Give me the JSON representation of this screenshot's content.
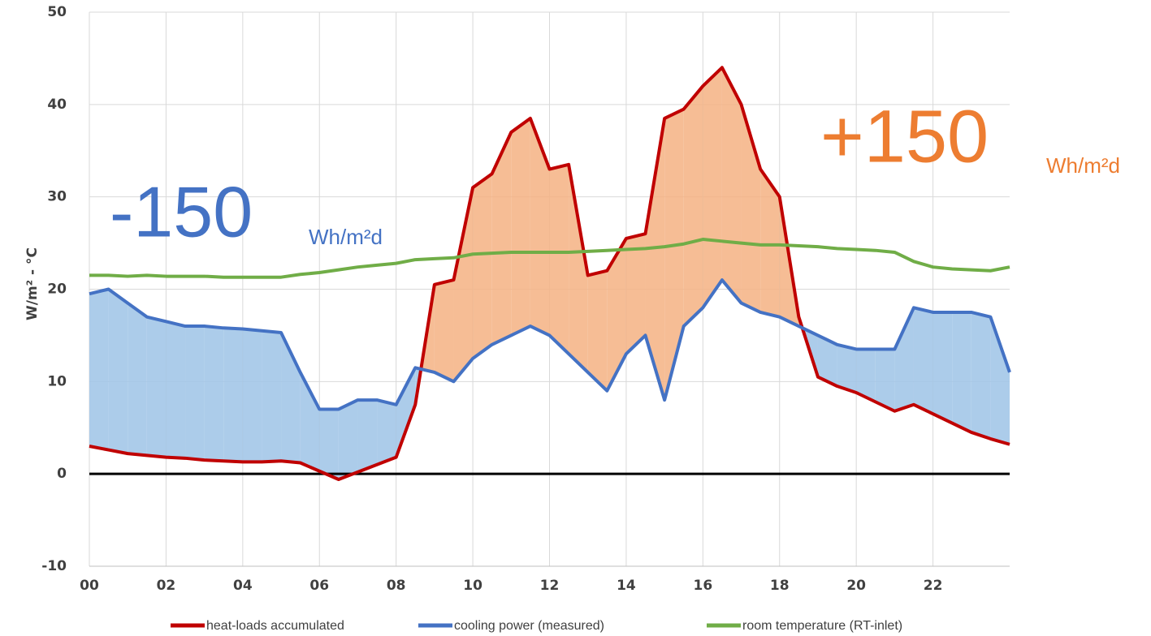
{
  "chart_data": {
    "type": "line",
    "y_label": "W/m²  -  °C",
    "x": [
      0,
      0.5,
      1,
      1.5,
      2,
      2.5,
      3,
      3.5,
      4,
      4.5,
      5,
      5.5,
      6,
      6.5,
      7,
      7.5,
      8,
      8.5,
      9,
      9.5,
      10,
      10.5,
      11,
      11.5,
      12,
      12.5,
      13,
      13.5,
      14,
      14.5,
      15,
      15.5,
      16,
      16.5,
      17,
      17.5,
      18,
      18.5,
      19,
      19.5,
      20,
      20.5,
      21,
      21.5,
      22,
      22.5,
      23,
      23.5,
      24
    ],
    "series": [
      {
        "name": "heat-loads accumulated",
        "color": "#c00000",
        "values": [
          3,
          2.6,
          2.2,
          2.0,
          1.8,
          1.7,
          1.5,
          1.4,
          1.3,
          1.3,
          1.4,
          1.2,
          0.3,
          -0.6,
          0.2,
          1.0,
          1.8,
          7.5,
          20.5,
          21,
          31,
          32.5,
          37,
          38.5,
          33,
          33.5,
          21.5,
          22,
          25.5,
          26,
          38.5,
          39.5,
          42,
          44,
          40,
          33,
          30,
          17,
          10.5,
          9.5,
          8.8,
          7.8,
          6.8,
          7.5,
          6.5,
          5.5,
          4.5,
          3.8,
          3.2
        ]
      },
      {
        "name": "cooling power (measured)",
        "color": "#4472c4",
        "values": [
          19.5,
          20,
          18.5,
          17,
          16.5,
          16,
          16,
          15.8,
          15.7,
          15.5,
          15.3,
          11,
          7,
          7,
          8,
          8,
          7.5,
          11.5,
          11,
          10,
          12.5,
          14,
          15,
          16,
          15,
          13,
          11,
          9,
          13,
          15,
          8,
          16,
          18,
          21,
          18.5,
          17.5,
          17,
          16,
          15,
          14,
          13.5,
          13.5,
          13.5,
          18,
          17.5,
          17.5,
          17.5,
          17,
          11
        ]
      },
      {
        "name": "room temperature (RT-inlet)",
        "color": "#70ad47",
        "values": [
          21.5,
          21.5,
          21.4,
          21.5,
          21.4,
          21.4,
          21.4,
          21.3,
          21.3,
          21.3,
          21.3,
          21.6,
          21.8,
          22.1,
          22.4,
          22.6,
          22.8,
          23.2,
          23.3,
          23.4,
          23.8,
          23.9,
          24,
          24,
          24,
          24,
          24.1,
          24.2,
          24.3,
          24.4,
          24.6,
          24.9,
          25.4,
          25.2,
          25,
          24.8,
          24.8,
          24.7,
          24.6,
          24.4,
          24.3,
          24.2,
          24,
          23,
          22.4,
          22.2,
          22.1,
          22,
          22.4
        ]
      }
    ],
    "fill_colors": {
      "surplus": "#f4b183",
      "deficit": "#9dc3e6"
    },
    "xlim": [
      0,
      24
    ],
    "xticks": [
      {
        "value": 0,
        "label": "00"
      },
      {
        "value": 2,
        "label": "02"
      },
      {
        "value": 4,
        "label": "04"
      },
      {
        "value": 6,
        "label": "06"
      },
      {
        "value": 8,
        "label": "08"
      },
      {
        "value": 10,
        "label": "10"
      },
      {
        "value": 12,
        "label": "12"
      },
      {
        "value": 14,
        "label": "14"
      },
      {
        "value": 16,
        "label": "16"
      },
      {
        "value": 18,
        "label": "18"
      },
      {
        "value": 20,
        "label": "20"
      },
      {
        "value": 22,
        "label": "22"
      }
    ],
    "ylim": [
      -10,
      50
    ],
    "yticks": [
      -10,
      0,
      10,
      20,
      30,
      40,
      50
    ],
    "grid": true,
    "legend": "bottom",
    "annotations": [
      {
        "text": "-150",
        "color": "#4472c4"
      },
      {
        "text": "Wh/m²d",
        "color": "#4472c4"
      },
      {
        "text": "+150",
        "color": "#ed7d31"
      },
      {
        "text": "Wh/m²d",
        "color": "#ed7d31"
      }
    ]
  }
}
